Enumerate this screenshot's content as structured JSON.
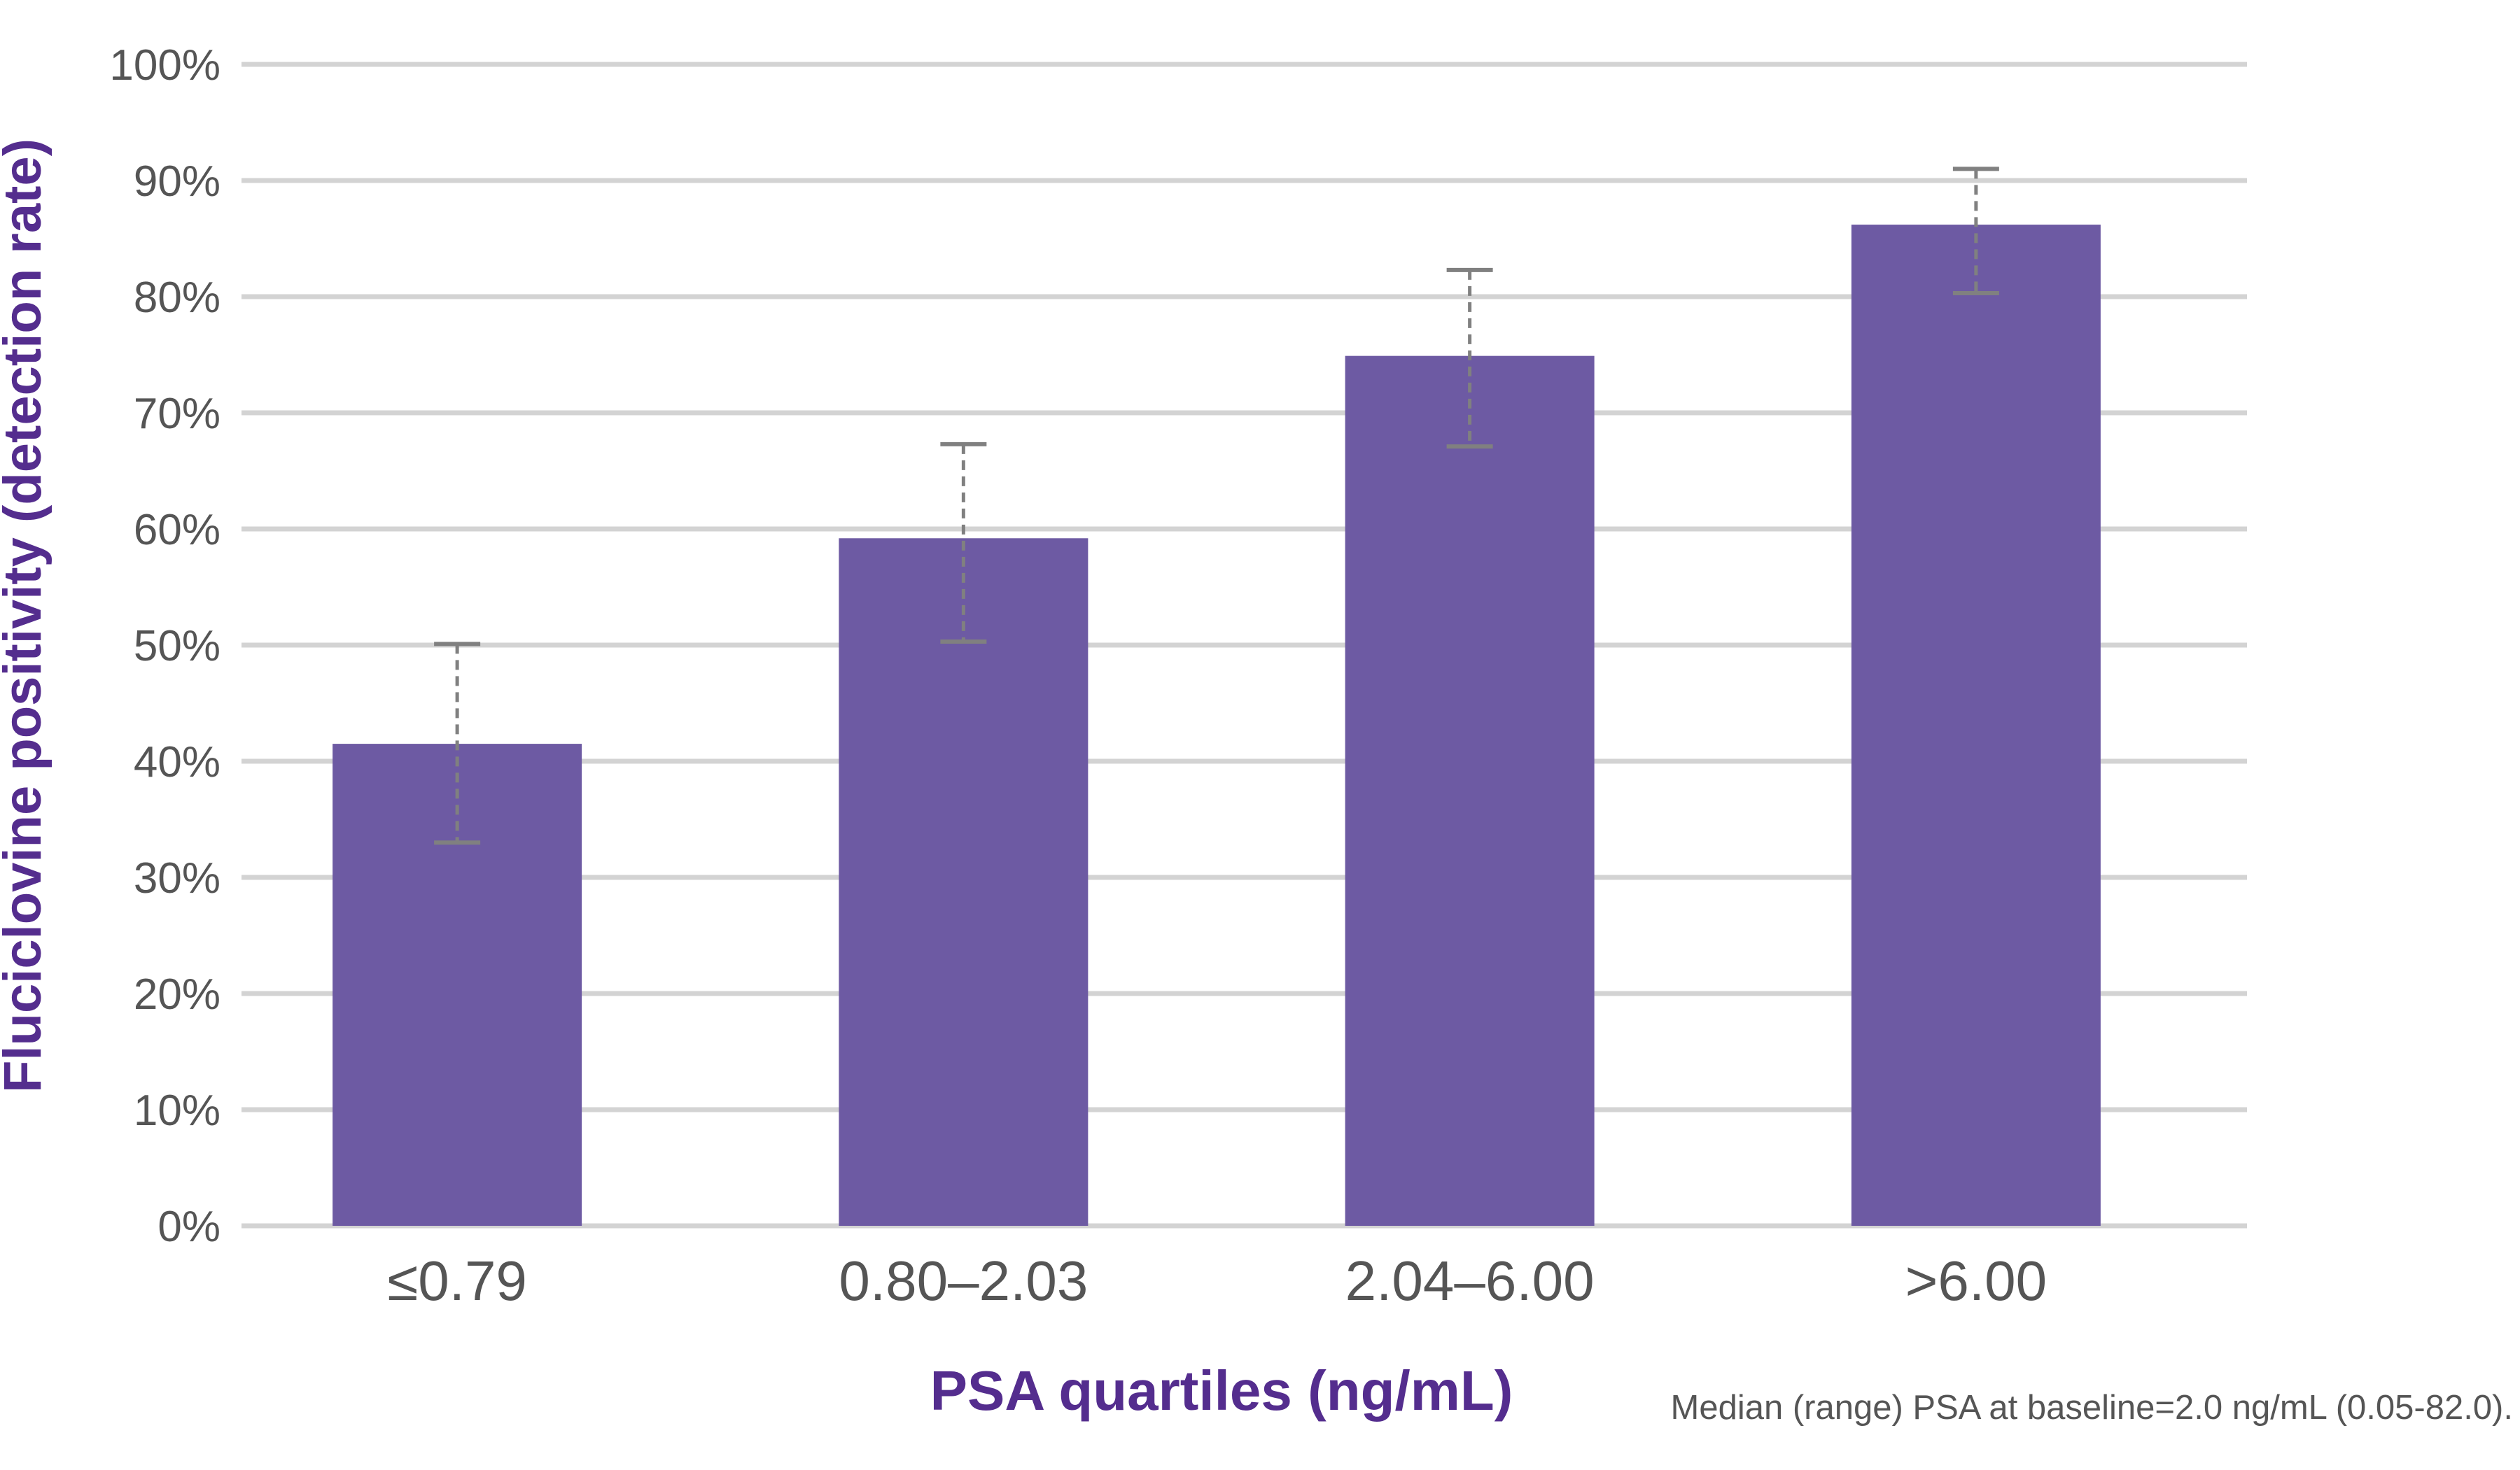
{
  "chart_data": {
    "type": "bar",
    "categories": [
      "≤0.79",
      "0.80–2.03",
      "2.04–6.00",
      ">6.00"
    ],
    "values": [
      41.5,
      59.2,
      74.9,
      86.2
    ],
    "error_bars": [
      {
        "low": 33.0,
        "high": 50.1
      },
      {
        "low": 50.3,
        "high": 67.3
      },
      {
        "low": 67.1,
        "high": 82.3
      },
      {
        "low": 80.3,
        "high": 91.0
      }
    ],
    "ylim": [
      0,
      100
    ],
    "yticks": [
      "0%",
      "10%",
      "20%",
      "30%",
      "40%",
      "50%",
      "60%",
      "70%",
      "80%",
      "90%",
      "100%"
    ],
    "ytick_values": [
      0,
      10,
      20,
      30,
      40,
      50,
      60,
      70,
      80,
      90,
      100
    ],
    "xlabel": "PSA quartiles (ng/mL)",
    "ylabel": "Fluciclovine positivity (detection rate)",
    "note": "Median (range) PSA at baseline=2.0 ng/mL (0.05-82.0).",
    "grid": true,
    "colors": {
      "bar": "#6D5AA3",
      "label": "#542D8E",
      "tick_text": "#555555",
      "grid": "#D3D3D3",
      "error_bar": "#808080"
    }
  }
}
